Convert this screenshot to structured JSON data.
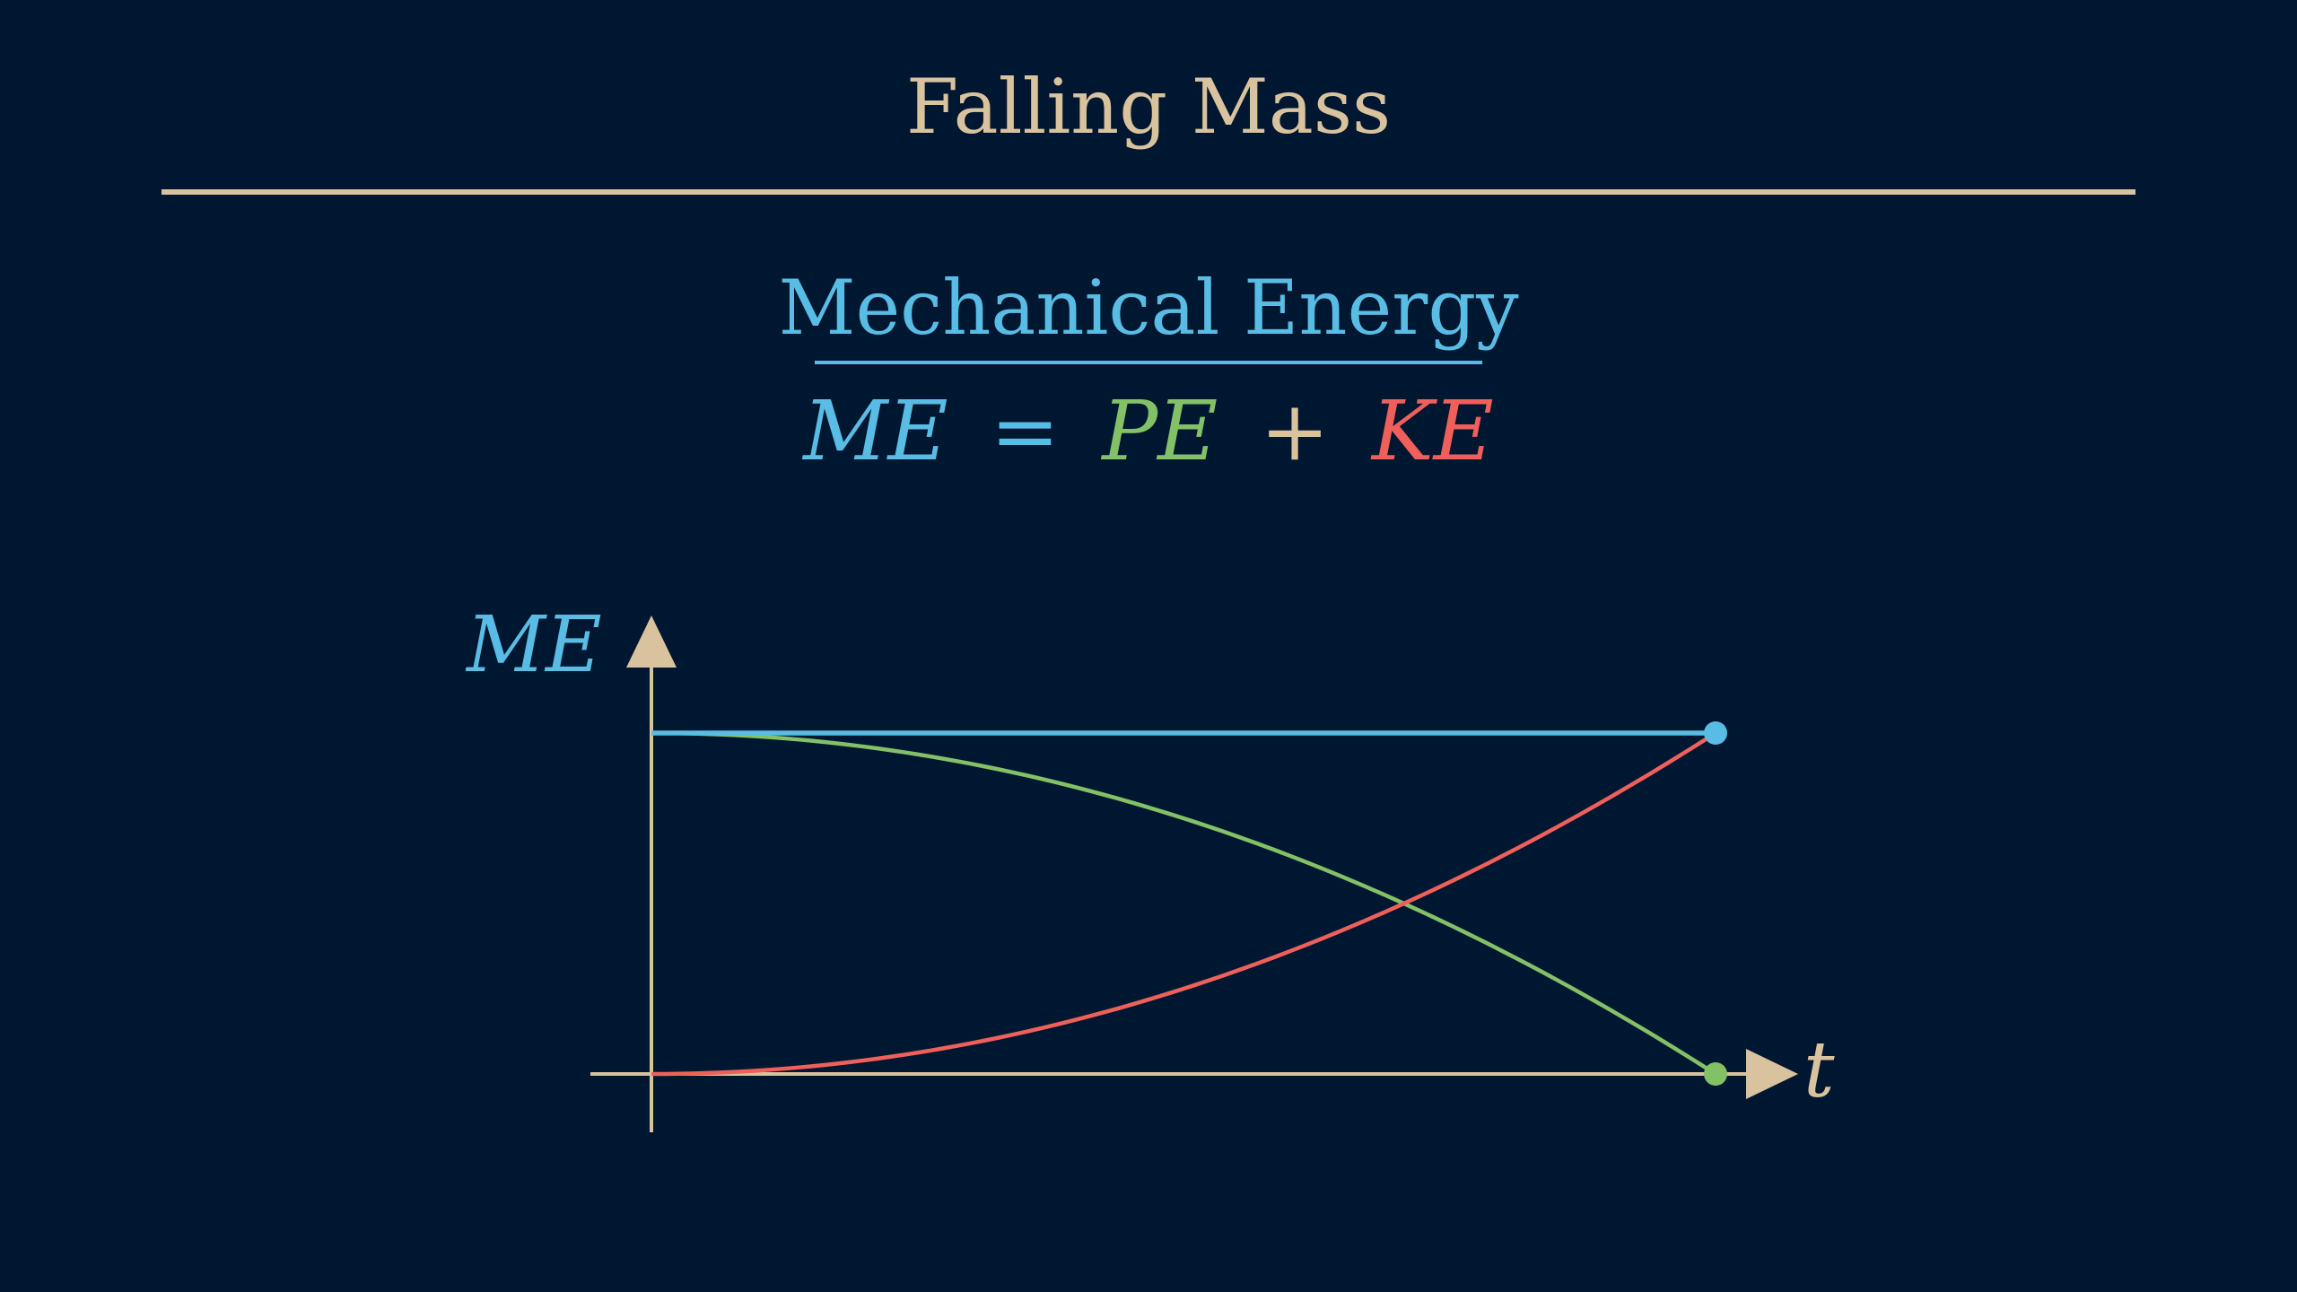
{
  "slide": {
    "title": "Falling Mass",
    "subtitle": "Mechanical Energy",
    "equation": {
      "me": "ME",
      "equals": "=",
      "pe": "PE",
      "plus": "+",
      "ke": "KE"
    }
  },
  "graph": {
    "y_axis_label": "ME",
    "x_axis_label": "t",
    "curves": [
      {
        "label": "ME",
        "shape": "constant",
        "start": 1,
        "end": 1
      },
      {
        "label": "PE",
        "shape": "decreasing-parabola",
        "start": 1,
        "end": 0
      },
      {
        "label": "KE",
        "shape": "increasing-parabola",
        "start": 0,
        "end": 1
      }
    ]
  },
  "colors": {
    "background": "#001731",
    "ink": "#D9C29E",
    "me": "#58BCE4",
    "pe": "#83C167",
    "ke": "#F0605A"
  }
}
